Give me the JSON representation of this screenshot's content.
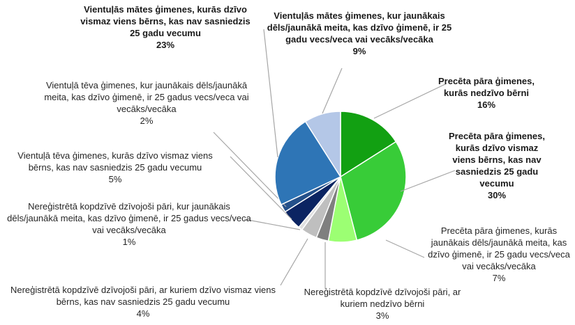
{
  "chart_data": {
    "type": "pie",
    "categories": [
      "Precēta pāra ģimenes, kurās nedzīvo bērni",
      "Precēta pāra ģimenes, kurās dzīvo vismaz viens bērns, kas nav sasniedzis 25 gadu vecumu",
      "Precēta pāra ģimenes, kurās jaunākais dēls/jaunākā meita, kas dzīvo ģimenē, ir 25 gadu vecs/veca vai vecāks/vecāka",
      "Nereģistrētā kopdzīvē dzīvojoši pāri, ar kuriem nedzīvo bērni",
      "Nereģistrētā kopdzīvē dzīvojoši pāri, ar kuriem dzīvo vismaz viens bērns, kas nav sasniedzis 25 gadu vecumu",
      "Nereģistrētā kopdzīvē dzīvojoši pāri, kur jaunākais dēls/jaunākā meita, kas dzīvo ģimenē, ir 25 gadus vecs/veca vai vecāks/vecāka",
      "Vientuļā tēva ģimenes, kurās dzīvo vismaz viens bērns, kas nav sasniedzis 25 gadu vecumu",
      "Vientuļā tēva ģimenes, kur jaunākais dēls/jaunākā meita, kas dzīvo ģimenē, ir 25 gadus vecs/veca vai vecāks/vecāka",
      "Vientuļās mātes ģimenes, kurās dzīvo vismaz viens bērns, kas nav sasniedzis 25 gadu vecumu",
      "Vientuļās mātes ģimenes, kur jaunākais dēls/jaunākā meita, kas dzīvo ģimenē, ir 25 gadu vecs/veca vai vecāks/vecāka"
    ],
    "values": [
      16,
      30,
      7,
      3,
      4,
      1,
      5,
      2,
      23,
      9
    ],
    "value_labels": [
      "16%",
      "30%",
      "7%",
      "3%",
      "4%",
      "1%",
      "5%",
      "2%",
      "23%",
      "9%"
    ],
    "colors": [
      "#12a012",
      "#38cc38",
      "#9cff73",
      "#7f7f7f",
      "#bfbfbf",
      "#e0e0e0",
      "#0b2462",
      "#24508a",
      "#2e75b6",
      "#b4c7e7"
    ]
  }
}
